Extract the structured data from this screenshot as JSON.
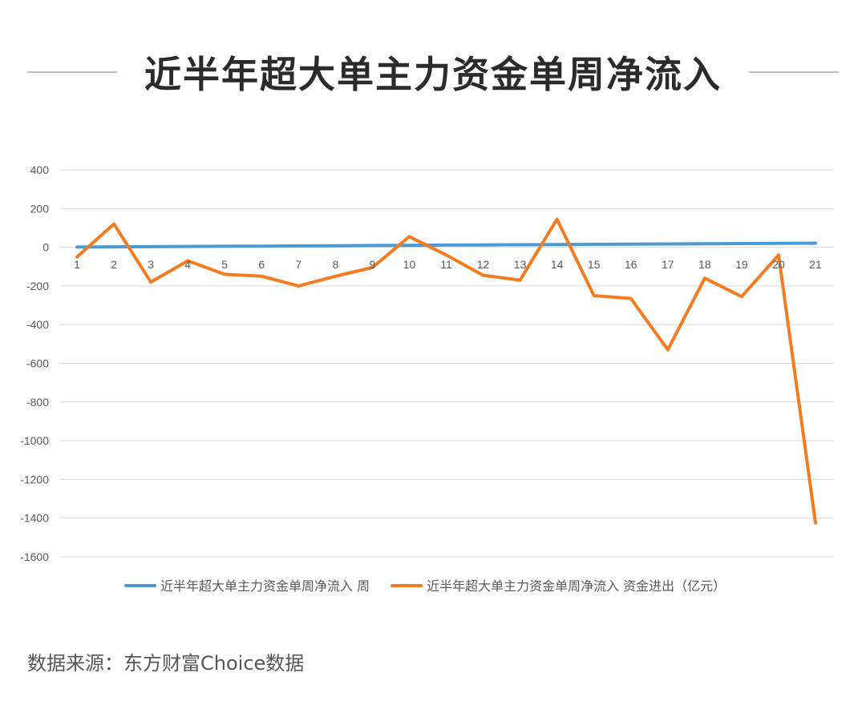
{
  "title": "近半年超大单主力资金单周净流入",
  "source": "数据来源：东方财富Choice数据",
  "chart_data": {
    "type": "line",
    "title": "近半年超大单主力资金单周净流入",
    "x": [
      1,
      2,
      3,
      4,
      5,
      6,
      7,
      8,
      9,
      10,
      11,
      12,
      13,
      14,
      15,
      16,
      17,
      18,
      19,
      20,
      21
    ],
    "series": [
      {
        "name": "近半年超大单主力资金单周净流入 周",
        "color": "#4a9ad8",
        "values": [
          1,
          2,
          3,
          4,
          5,
          6,
          7,
          8,
          9,
          10,
          11,
          12,
          13,
          14,
          15,
          16,
          17,
          18,
          19,
          20,
          21
        ]
      },
      {
        "name": "近半年超大单主力资金单周净流入 资金进出（亿元）",
        "color": "#f47c20",
        "values": [
          -50,
          120,
          -180,
          -70,
          -140,
          -150,
          -200,
          -150,
          -105,
          55,
          -40,
          -145,
          -170,
          145,
          -250,
          -265,
          -530,
          -160,
          -255,
          -40,
          -1425
        ]
      }
    ],
    "ylim": [
      -1600,
      400
    ],
    "yticks": [
      400,
      200,
      0,
      -200,
      -400,
      -600,
      -800,
      -1000,
      -1200,
      -1400,
      -1600
    ],
    "grid": true,
    "legend": "bottom"
  }
}
